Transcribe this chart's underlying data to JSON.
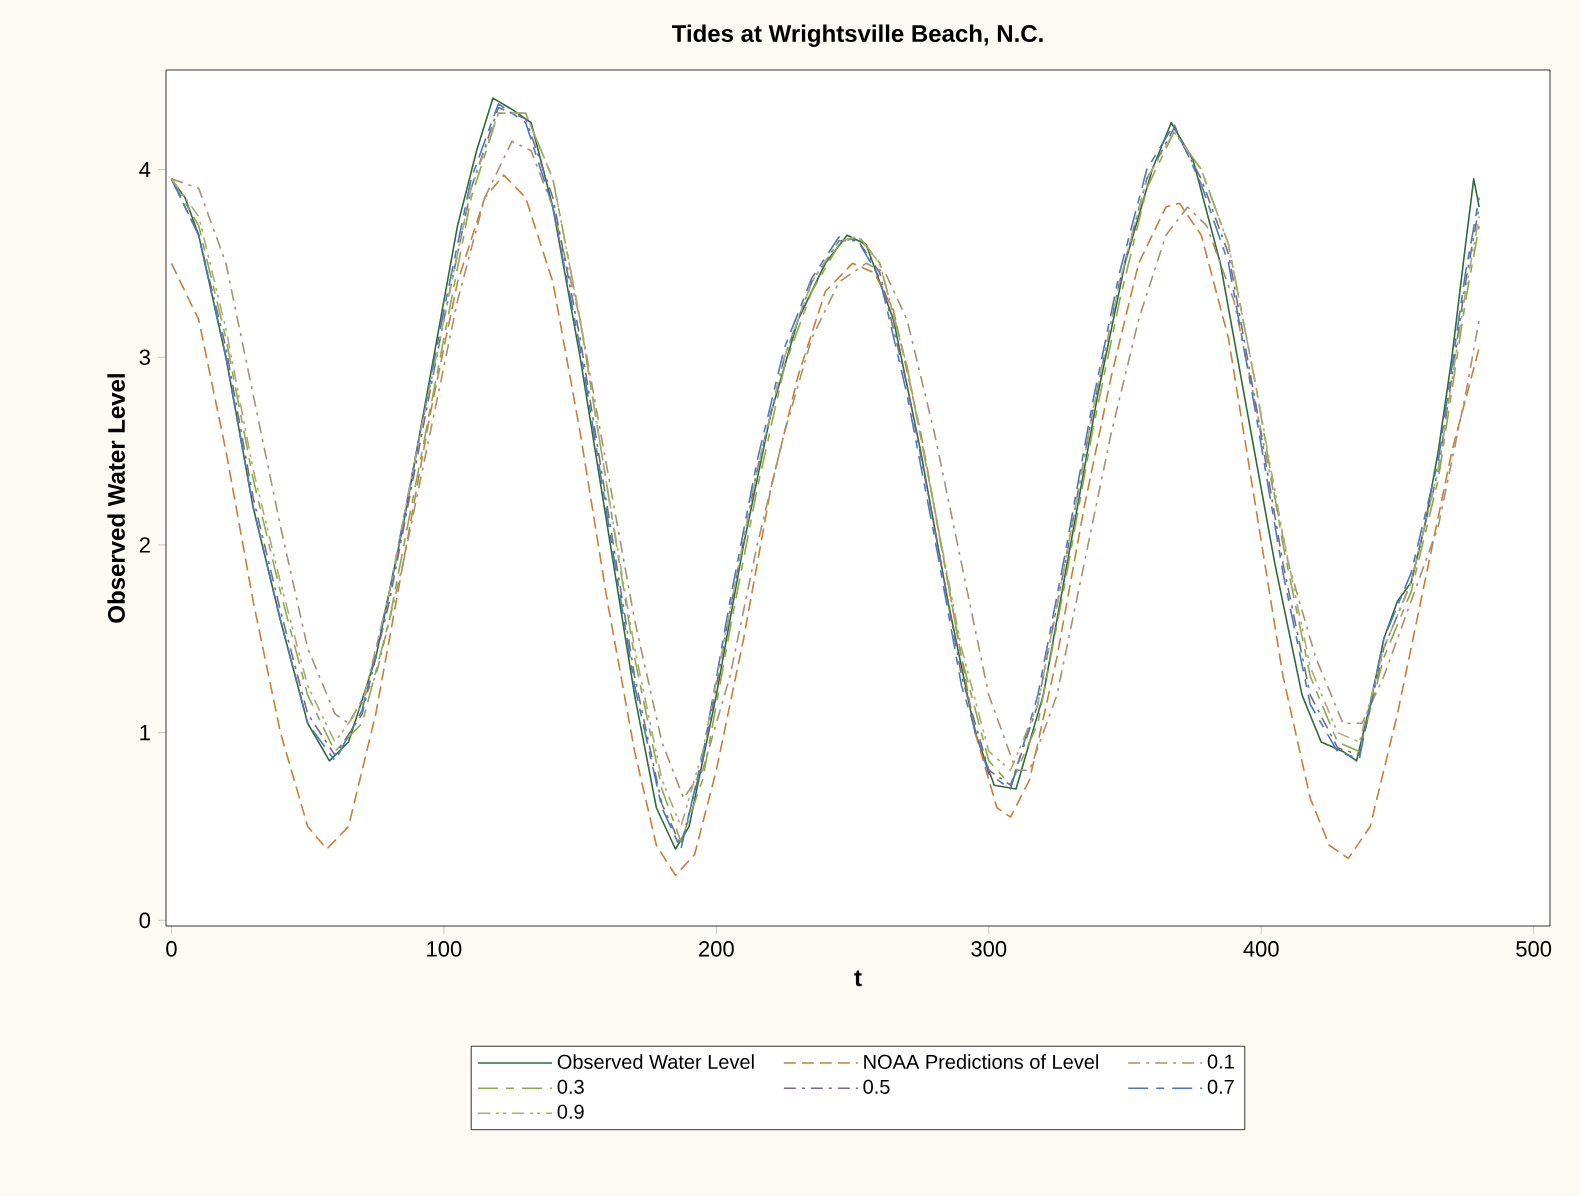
{
  "chart_data": {
    "type": "line",
    "title": "Tides at Wrightsville Beach, N.C.",
    "xlabel": "t",
    "ylabel": "Observed Water Level",
    "xlim": [
      -2,
      506
    ],
    "ylim": [
      -0.03,
      4.53
    ],
    "xticks": [
      0,
      100,
      200,
      300,
      400,
      500
    ],
    "yticks": [
      0,
      1,
      2,
      3,
      4
    ],
    "grid": false,
    "legend": "bottom",
    "marker": "none",
    "series": [
      {
        "name": "Observed Water Level",
        "color": "#2f6b3a",
        "line_style": "solid",
        "x": [
          0,
          5,
          10,
          20,
          30,
          40,
          50,
          58,
          65,
          75,
          85,
          95,
          105,
          112,
          118,
          125,
          132,
          140,
          150,
          160,
          170,
          178,
          185,
          190,
          200,
          210,
          220,
          230,
          240,
          248,
          255,
          265,
          275,
          285,
          295,
          302,
          310,
          320,
          330,
          340,
          350,
          360,
          367,
          375,
          385,
          395,
          405,
          415,
          422,
          430,
          435,
          440,
          445,
          450,
          455,
          460,
          465,
          470,
          475,
          478,
          480
        ],
        "values": [
          3.95,
          3.85,
          3.65,
          3.0,
          2.2,
          1.6,
          1.05,
          0.85,
          0.95,
          1.4,
          2.1,
          2.9,
          3.7,
          4.1,
          4.38,
          4.32,
          4.25,
          3.8,
          3.0,
          2.1,
          1.2,
          0.6,
          0.38,
          0.5,
          1.2,
          2.0,
          2.7,
          3.2,
          3.5,
          3.65,
          3.6,
          3.2,
          2.5,
          1.7,
          1.0,
          0.72,
          0.7,
          1.2,
          2.0,
          2.8,
          3.5,
          4.0,
          4.25,
          4.05,
          3.5,
          2.7,
          1.9,
          1.2,
          0.95,
          0.9,
          0.85,
          1.15,
          1.5,
          1.7,
          1.8,
          2.1,
          2.5,
          3.0,
          3.6,
          3.95,
          3.8
        ]
      },
      {
        "name": "NOAA Predictions of Level",
        "color": "#c87f3a",
        "line_style": "dashed",
        "x": [
          0,
          10,
          20,
          30,
          40,
          50,
          57,
          65,
          75,
          85,
          95,
          105,
          115,
          122,
          130,
          140,
          150,
          160,
          170,
          178,
          185,
          192,
          200,
          210,
          220,
          230,
          240,
          250,
          258,
          265,
          275,
          285,
          295,
          303,
          308,
          315,
          325,
          335,
          345,
          355,
          365,
          370,
          378,
          388,
          398,
          408,
          418,
          425,
          432,
          440,
          450,
          460,
          470,
          480
        ],
        "values": [
          3.5,
          3.2,
          2.5,
          1.7,
          1.0,
          0.5,
          0.38,
          0.5,
          1.1,
          1.9,
          2.7,
          3.4,
          3.85,
          3.97,
          3.85,
          3.4,
          2.6,
          1.7,
          0.9,
          0.4,
          0.24,
          0.35,
          0.8,
          1.5,
          2.3,
          2.9,
          3.35,
          3.5,
          3.45,
          3.25,
          2.6,
          1.8,
          1.0,
          0.6,
          0.55,
          0.75,
          1.4,
          2.2,
          2.9,
          3.5,
          3.8,
          3.82,
          3.65,
          3.1,
          2.2,
          1.3,
          0.65,
          0.4,
          0.33,
          0.5,
          1.1,
          1.8,
          2.5,
          3.05
        ]
      },
      {
        "name": "0.1",
        "color": "#a89070",
        "line_style": "dashdot",
        "x": [
          0,
          10,
          20,
          30,
          40,
          50,
          60,
          65,
          75,
          85,
          95,
          105,
          115,
          125,
          132,
          140,
          150,
          160,
          170,
          180,
          188,
          195,
          205,
          215,
          225,
          235,
          245,
          255,
          262,
          270,
          280,
          290,
          300,
          310,
          315,
          325,
          335,
          345,
          355,
          365,
          373,
          380,
          390,
          400,
          410,
          420,
          430,
          437,
          445,
          455,
          465,
          475,
          480
        ],
        "values": [
          3.95,
          3.9,
          3.5,
          2.8,
          2.1,
          1.45,
          1.1,
          1.05,
          1.3,
          1.9,
          2.6,
          3.3,
          3.85,
          4.15,
          4.1,
          3.8,
          3.2,
          2.4,
          1.6,
          0.95,
          0.65,
          0.8,
          1.3,
          2.0,
          2.6,
          3.1,
          3.4,
          3.5,
          3.45,
          3.2,
          2.6,
          1.9,
          1.2,
          0.8,
          0.8,
          1.2,
          1.9,
          2.6,
          3.2,
          3.65,
          3.8,
          3.7,
          3.3,
          2.6,
          1.9,
          1.4,
          1.05,
          1.05,
          1.3,
          1.7,
          2.1,
          2.8,
          3.2
        ]
      },
      {
        "name": "0.3",
        "color": "#8aab4a",
        "line_style": "solid_dash",
        "x": [
          0,
          10,
          20,
          30,
          40,
          50,
          60,
          70,
          80,
          90,
          100,
          110,
          120,
          130,
          140,
          150,
          160,
          170,
          180,
          187,
          195,
          205,
          215,
          225,
          235,
          245,
          252,
          260,
          270,
          280,
          290,
          300,
          308,
          318,
          328,
          338,
          348,
          358,
          368,
          378,
          388,
          398,
          408,
          418,
          428,
          436,
          445,
          455,
          465,
          475,
          480
        ],
        "values": [
          3.95,
          3.7,
          3.1,
          2.35,
          1.75,
          1.2,
          0.9,
          1.05,
          1.6,
          2.35,
          3.1,
          3.85,
          4.3,
          4.3,
          3.95,
          3.2,
          2.3,
          1.4,
          0.7,
          0.42,
          0.75,
          1.55,
          2.3,
          2.95,
          3.35,
          3.6,
          3.65,
          3.5,
          2.95,
          2.2,
          1.4,
          0.85,
          0.72,
          1.05,
          1.8,
          2.6,
          3.3,
          3.9,
          4.2,
          4.0,
          3.6,
          2.85,
          2.0,
          1.3,
          0.95,
          0.9,
          1.4,
          1.75,
          2.35,
          3.3,
          3.7
        ]
      },
      {
        "name": "0.5",
        "color": "#7a6a8a",
        "line_style": "dashdot",
        "x": [
          0,
          10,
          20,
          30,
          40,
          50,
          60,
          70,
          80,
          90,
          100,
          110,
          120,
          130,
          140,
          150,
          160,
          170,
          180,
          187,
          195,
          205,
          215,
          225,
          235,
          245,
          252,
          260,
          270,
          280,
          290,
          300,
          308,
          318,
          328,
          338,
          348,
          358,
          368,
          378,
          388,
          398,
          408,
          418,
          428,
          436,
          445,
          455,
          465,
          475,
          480
        ],
        "values": [
          3.95,
          3.65,
          3.05,
          2.25,
          1.65,
          1.1,
          0.88,
          1.1,
          1.7,
          2.45,
          3.2,
          3.9,
          4.33,
          4.27,
          3.85,
          3.1,
          2.2,
          1.3,
          0.62,
          0.4,
          0.85,
          1.65,
          2.4,
          3.0,
          3.4,
          3.62,
          3.62,
          3.45,
          2.85,
          2.1,
          1.3,
          0.8,
          0.72,
          1.15,
          1.9,
          2.7,
          3.4,
          3.95,
          4.22,
          3.95,
          3.55,
          2.75,
          1.9,
          1.2,
          0.92,
          0.88,
          1.45,
          1.8,
          2.4,
          3.4,
          3.8
        ]
      },
      {
        "name": "0.7",
        "color": "#4a7ab8",
        "line_style": "solid_dash",
        "x": [
          0,
          10,
          20,
          30,
          40,
          50,
          60,
          70,
          80,
          90,
          100,
          110,
          120,
          130,
          140,
          150,
          160,
          170,
          180,
          187,
          195,
          205,
          215,
          225,
          235,
          245,
          252,
          260,
          270,
          280,
          290,
          300,
          308,
          318,
          328,
          338,
          348,
          358,
          368,
          378,
          388,
          398,
          408,
          418,
          428,
          436,
          445,
          455,
          465,
          475,
          480
        ],
        "values": [
          3.95,
          3.65,
          3.0,
          2.2,
          1.6,
          1.05,
          0.85,
          1.12,
          1.75,
          2.5,
          3.25,
          3.95,
          4.35,
          4.25,
          3.8,
          3.05,
          2.15,
          1.25,
          0.6,
          0.38,
          0.88,
          1.7,
          2.45,
          3.05,
          3.42,
          3.64,
          3.62,
          3.42,
          2.8,
          2.05,
          1.25,
          0.78,
          0.7,
          1.2,
          1.95,
          2.75,
          3.45,
          4.0,
          4.24,
          3.92,
          3.5,
          2.7,
          1.85,
          1.15,
          0.9,
          0.86,
          1.5,
          1.85,
          2.45,
          3.45,
          3.85
        ]
      },
      {
        "name": "0.9",
        "color": "#b0a878",
        "line_style": "dashdotdot",
        "x": [
          0,
          10,
          20,
          30,
          40,
          50,
          60,
          70,
          80,
          90,
          100,
          110,
          120,
          130,
          140,
          150,
          160,
          170,
          180,
          187,
          195,
          205,
          215,
          225,
          235,
          245,
          252,
          260,
          270,
          280,
          290,
          300,
          308,
          318,
          328,
          338,
          348,
          358,
          368,
          378,
          388,
          398,
          408,
          418,
          428,
          436,
          445,
          455,
          465,
          475,
          480
        ],
        "values": [
          3.95,
          3.75,
          3.15,
          2.4,
          1.8,
          1.25,
          0.95,
          1.15,
          1.75,
          2.5,
          3.2,
          3.9,
          4.3,
          4.3,
          3.95,
          3.2,
          2.3,
          1.45,
          0.75,
          0.5,
          0.9,
          1.65,
          2.4,
          3.0,
          3.4,
          3.62,
          3.64,
          3.5,
          2.95,
          2.2,
          1.45,
          0.9,
          0.8,
          1.15,
          1.9,
          2.7,
          3.4,
          3.95,
          4.2,
          4.0,
          3.6,
          2.85,
          2.05,
          1.35,
          1.0,
          0.95,
          1.45,
          1.8,
          2.4,
          3.35,
          3.75
        ]
      }
    ]
  }
}
